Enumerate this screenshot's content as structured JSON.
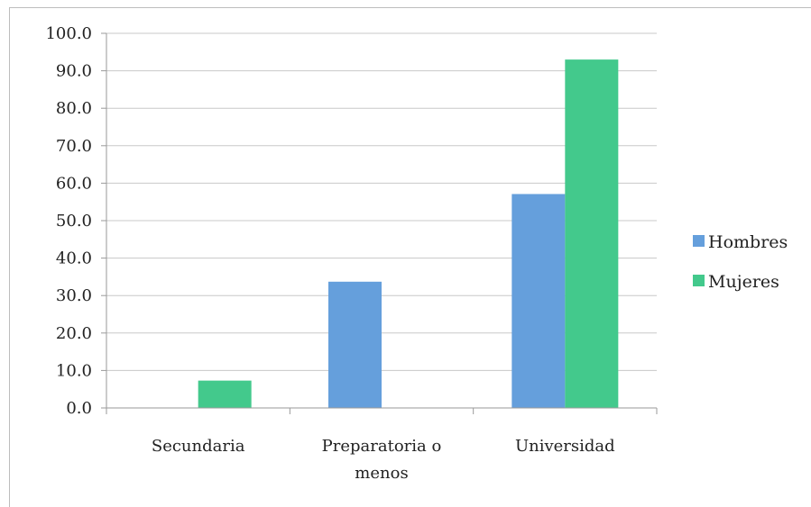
{
  "chart_data": {
    "type": "bar",
    "categories": [
      [
        "Secundaria"
      ],
      [
        "Preparatoria o",
        "menos"
      ],
      [
        "Universidad"
      ]
    ],
    "series": [
      {
        "name": "Hombres",
        "values": [
          0.0,
          33.7,
          57.1
        ],
        "color": "#659fdc"
      },
      {
        "name": "Mujeres",
        "values": [
          7.3,
          0.0,
          93.0
        ],
        "color": "#43c98c"
      }
    ],
    "ylim": [
      0,
      100
    ],
    "yticks": [
      "0.0",
      "10.0",
      "20.0",
      "30.0",
      "40.0",
      "50.0",
      "60.0",
      "70.0",
      "80.0",
      "90.0",
      "100.0"
    ],
    "grid": true,
    "legend_position": "right",
    "title": "",
    "xlabel": "",
    "ylabel": ""
  }
}
